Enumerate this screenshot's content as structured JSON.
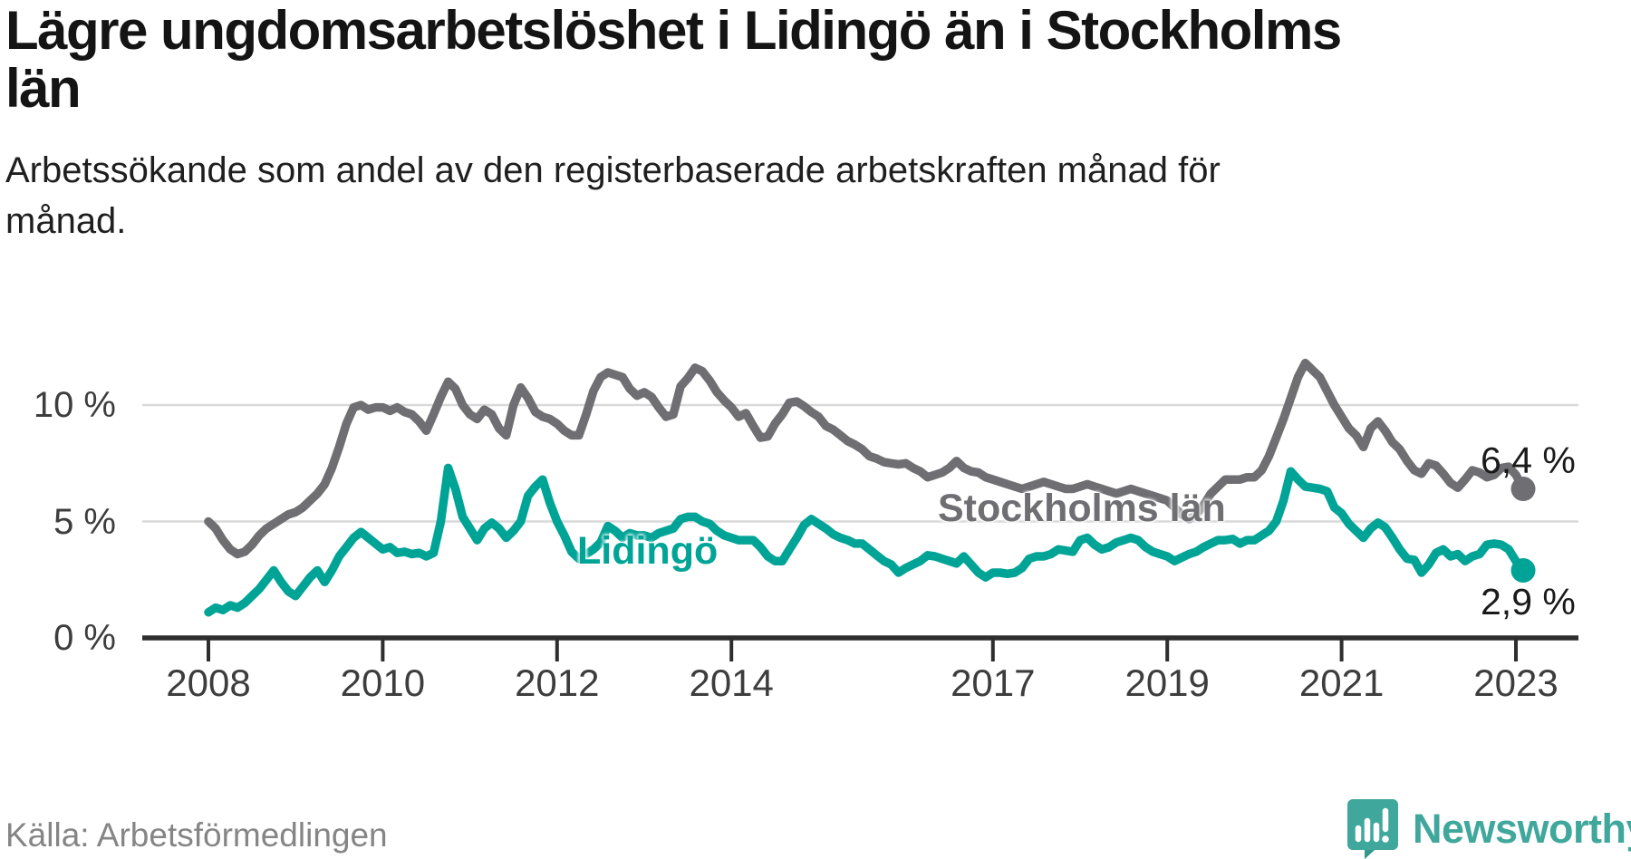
{
  "header": {
    "title": "Lägre ungdomsarbetslöshet i Lidingö än i Stockholms\nlän",
    "subtitle": "Arbetssökande som andel av den registerbaserade arbetskraften månad för\nmånad."
  },
  "footer": {
    "source": "Källa: Arbetsförmedlingen",
    "brand": "Newsworthy",
    "brand_color": "#3fa79b",
    "logo_icon": "newsworthy-speech-bubble-chart-icon"
  },
  "chart_data": {
    "type": "line",
    "unit": "%",
    "frequency": "monthly",
    "x_start": {
      "year": 2008,
      "month": 1
    },
    "x_end": {
      "year": 2023,
      "month": 2
    },
    "ylim": [
      0,
      12.3
    ],
    "grid": "horizontal-only",
    "legend_position": "inline-labels-on-lines",
    "y_ticks": [
      {
        "value": 0,
        "label": "0 %"
      },
      {
        "value": 5,
        "label": "5 %"
      },
      {
        "value": 10,
        "label": "10 %"
      }
    ],
    "x_ticks": [
      {
        "year": 2008,
        "label": "2008"
      },
      {
        "year": 2010,
        "label": "2010"
      },
      {
        "year": 2012,
        "label": "2012"
      },
      {
        "year": 2014,
        "label": "2014"
      },
      {
        "year": 2017,
        "label": "2017"
      },
      {
        "year": 2019,
        "label": "2019"
      },
      {
        "year": 2021,
        "label": "2021"
      },
      {
        "year": 2023,
        "label": "2023"
      }
    ],
    "colors": {
      "gridline": "#d9d9d9",
      "axis": "#2e2e2e",
      "tick_label": "#3d3d3d"
    },
    "series": [
      {
        "name": "Stockholms län",
        "color": "#6e6e73",
        "end_label": "6,4 %",
        "end_value": 6.4,
        "values": [
          5.0,
          4.7,
          4.2,
          3.8,
          3.6,
          3.7,
          4.0,
          4.4,
          4.7,
          4.9,
          5.1,
          5.3,
          5.4,
          5.6,
          5.9,
          6.2,
          6.6,
          7.3,
          8.2,
          9.2,
          9.9,
          10.0,
          9.8,
          9.9,
          9.9,
          9.75,
          9.9,
          9.7,
          9.6,
          9.3,
          8.9,
          9.6,
          10.35,
          11.0,
          10.7,
          10.0,
          9.6,
          9.4,
          9.8,
          9.6,
          9.0,
          8.7,
          10.0,
          10.75,
          10.3,
          9.7,
          9.5,
          9.4,
          9.2,
          8.9,
          8.7,
          8.7,
          9.6,
          10.6,
          11.2,
          11.4,
          11.3,
          11.2,
          10.7,
          10.4,
          10.55,
          10.35,
          9.9,
          9.5,
          9.6,
          10.8,
          11.15,
          11.6,
          11.45,
          11.05,
          10.55,
          10.2,
          9.9,
          9.5,
          9.65,
          9.1,
          8.6,
          8.65,
          9.2,
          9.6,
          10.1,
          10.15,
          9.95,
          9.7,
          9.5,
          9.1,
          8.95,
          8.7,
          8.45,
          8.3,
          8.1,
          7.8,
          7.7,
          7.55,
          7.5,
          7.45,
          7.5,
          7.3,
          7.15,
          6.9,
          7.0,
          7.1,
          7.3,
          7.6,
          7.3,
          7.15,
          7.1,
          6.9,
          6.8,
          6.7,
          6.6,
          6.5,
          6.4,
          6.5,
          6.6,
          6.7,
          6.6,
          6.5,
          6.4,
          6.4,
          6.5,
          6.6,
          6.5,
          6.4,
          6.3,
          6.2,
          6.3,
          6.4,
          6.3,
          6.2,
          6.1,
          6.0,
          5.9,
          5.6,
          5.3,
          5.1,
          5.3,
          5.7,
          6.2,
          6.5,
          6.8,
          6.8,
          6.8,
          6.9,
          6.9,
          7.2,
          7.8,
          8.6,
          9.4,
          10.3,
          11.2,
          11.8,
          11.5,
          11.2,
          10.6,
          10.0,
          9.5,
          9.0,
          8.7,
          8.2,
          9.0,
          9.3,
          8.9,
          8.4,
          8.1,
          7.6,
          7.2,
          7.05,
          7.5,
          7.4,
          7.05,
          6.65,
          6.45,
          6.8,
          7.2,
          7.1,
          6.9,
          7.0,
          7.3,
          7.35,
          7.0,
          6.4
        ]
      },
      {
        "name": "Lidingö",
        "color": "#00a496",
        "end_label": "2,9 %",
        "end_value": 2.9,
        "values": [
          1.1,
          1.3,
          1.2,
          1.4,
          1.3,
          1.5,
          1.8,
          2.1,
          2.5,
          2.9,
          2.4,
          2.0,
          1.8,
          2.2,
          2.6,
          2.9,
          2.4,
          2.9,
          3.5,
          3.9,
          4.3,
          4.55,
          4.3,
          4.05,
          3.8,
          3.9,
          3.65,
          3.7,
          3.6,
          3.65,
          3.5,
          3.65,
          5.0,
          7.3,
          6.4,
          5.2,
          4.7,
          4.2,
          4.7,
          4.95,
          4.7,
          4.3,
          4.6,
          5.0,
          6.1,
          6.5,
          6.8,
          5.8,
          5.0,
          4.4,
          3.7,
          3.4,
          3.6,
          3.8,
          4.1,
          4.8,
          4.6,
          4.3,
          4.5,
          4.4,
          4.4,
          4.3,
          4.5,
          4.6,
          4.7,
          5.1,
          5.2,
          5.2,
          5.0,
          4.9,
          4.6,
          4.4,
          4.3,
          4.2,
          4.2,
          4.2,
          3.9,
          3.5,
          3.3,
          3.3,
          3.8,
          4.3,
          4.85,
          5.1,
          4.9,
          4.7,
          4.45,
          4.3,
          4.2,
          4.05,
          4.05,
          3.8,
          3.55,
          3.3,
          3.15,
          2.8,
          3.0,
          3.15,
          3.3,
          3.55,
          3.5,
          3.4,
          3.3,
          3.2,
          3.5,
          3.15,
          2.8,
          2.6,
          2.8,
          2.8,
          2.75,
          2.8,
          3.0,
          3.4,
          3.5,
          3.5,
          3.6,
          3.8,
          3.75,
          3.7,
          4.2,
          4.3,
          4.0,
          3.8,
          3.9,
          4.1,
          4.2,
          4.3,
          4.2,
          3.9,
          3.7,
          3.6,
          3.5,
          3.3,
          3.45,
          3.6,
          3.7,
          3.9,
          4.05,
          4.2,
          4.2,
          4.25,
          4.05,
          4.2,
          4.2,
          4.4,
          4.6,
          5.0,
          5.9,
          7.15,
          6.8,
          6.5,
          6.45,
          6.4,
          6.3,
          5.6,
          5.35,
          4.9,
          4.6,
          4.3,
          4.7,
          4.95,
          4.75,
          4.3,
          3.8,
          3.4,
          3.35,
          2.8,
          3.15,
          3.65,
          3.8,
          3.5,
          3.6,
          3.3,
          3.5,
          3.6,
          4.0,
          4.05,
          4.0,
          3.8,
          3.3,
          2.9
        ]
      }
    ]
  }
}
